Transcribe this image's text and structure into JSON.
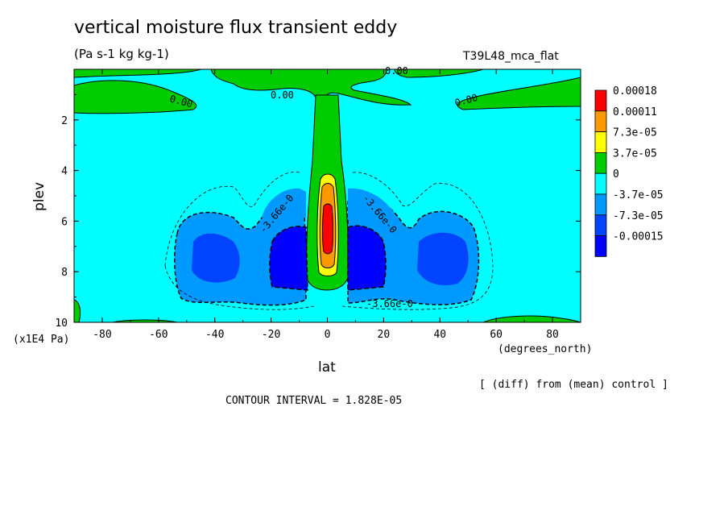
{
  "header": {
    "title": "vertical moisture flux transient eddy",
    "units": "(Pa s-1 kg kg-1)",
    "experiment": "T39L48_mca_flat"
  },
  "footer": {
    "y_scale": "(x1E4 Pa)",
    "x_units": "(degrees_north)",
    "difference_note": "[ (diff) from (mean) control ]",
    "contour_interval": "CONTOUR INTERVAL = 1.828E-05"
  },
  "chart_data": {
    "type": "heatmap",
    "title": "vertical moisture flux transient eddy",
    "subtitle": "(Pa s-1 kg kg-1)",
    "xlabel": "lat",
    "ylabel": "plev",
    "xlim": [
      -90,
      90
    ],
    "ylim": [
      10,
      0
    ],
    "x_ticks": [
      -80,
      -60,
      -40,
      -20,
      0,
      20,
      40,
      60,
      80
    ],
    "y_ticks": [
      2,
      4,
      6,
      8,
      10
    ],
    "legend": {
      "position": "right",
      "labels": [
        "0.00018",
        "0.00011",
        "7.3e-05",
        "3.7e-05",
        "0",
        "-3.7e-05",
        "-7.3e-05",
        "-0.00015"
      ],
      "colors": [
        "#ff0000",
        "#ff9900",
        "#ffff00",
        "#00cc00",
        "#00ffff",
        "#0099ff",
        "#0044ff",
        "#0000ff"
      ]
    },
    "contour_labels": [
      "0.00",
      "0.00",
      "0.00",
      "0.00",
      "-3.66e-0",
      "-3.66e-0",
      "-3.66e-0"
    ],
    "contour_interval": 1.828e-05,
    "grid": false
  },
  "colors": {
    "red": "#ff0000",
    "orange": "#ff9900",
    "yellow": "#ffff00",
    "green": "#00cc00",
    "cyan": "#00ffff",
    "lightblue": "#0099ff",
    "midblue": "#0044ff",
    "darkblue": "#0000ff"
  }
}
